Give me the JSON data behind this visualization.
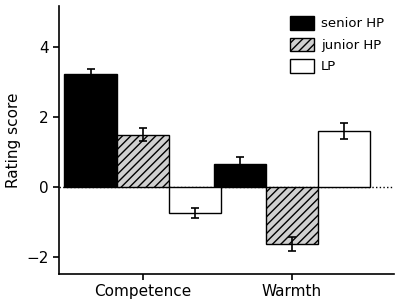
{
  "groups": [
    "Competence",
    "Warmth"
  ],
  "series": [
    "senior HP",
    "junior HP",
    "LP"
  ],
  "values": {
    "Competence": [
      3.25,
      1.5,
      -0.75
    ],
    "Warmth": [
      0.65,
      -1.65,
      1.6
    ]
  },
  "errors": {
    "Competence": [
      0.12,
      0.18,
      0.15
    ],
    "Warmth": [
      0.22,
      0.2,
      0.22
    ]
  },
  "bar_colors": [
    "#000000",
    "#d0d0d0",
    "#ffffff"
  ],
  "bar_edgecolor": "#000000",
  "bar_width": 0.28,
  "group_centers": [
    0.35,
    1.15
  ],
  "offsets": [
    -0.28,
    0.0,
    0.28
  ],
  "ylabel": "Rating score",
  "ylim": [
    -2.5,
    5.2
  ],
  "yticks": [
    -2,
    0,
    2,
    4
  ],
  "xlim": [
    -0.1,
    1.7
  ],
  "hline_y": 0,
  "legend_labels": [
    "senior HP",
    "junior HP",
    "LP"
  ],
  "background_color": "#ffffff",
  "figsize": [
    4.0,
    3.05
  ],
  "dpi": 100
}
